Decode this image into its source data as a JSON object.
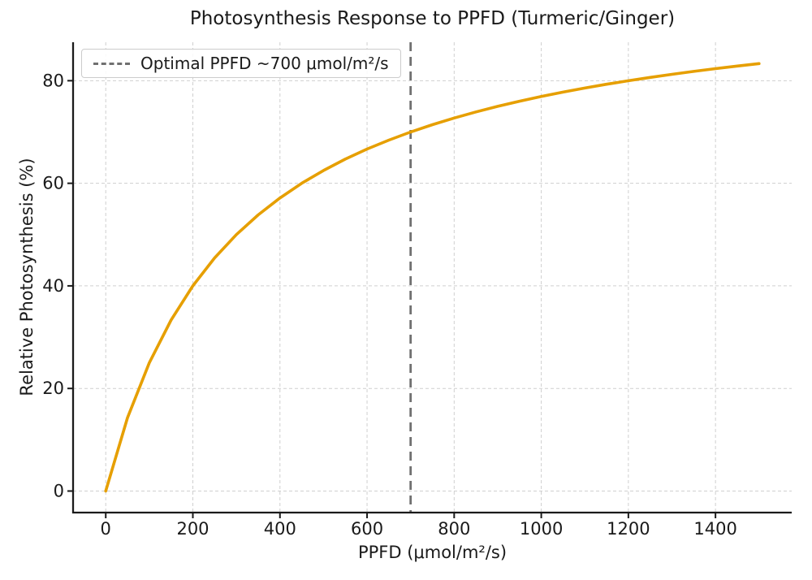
{
  "chart_data": {
    "type": "line",
    "title": "Photosynthesis Response to PPFD (Turmeric/Ginger)",
    "xlabel": "PPFD (μmol/m²/s)",
    "ylabel": "Relative Photosynthesis (%)",
    "x": [
      0,
      50,
      100,
      150,
      200,
      250,
      300,
      350,
      400,
      450,
      500,
      550,
      600,
      650,
      700,
      750,
      800,
      850,
      900,
      950,
      1000,
      1050,
      1100,
      1150,
      1200,
      1250,
      1300,
      1350,
      1400,
      1450,
      1500
    ],
    "series": [
      {
        "name": "relative-photosynthesis",
        "color": "#E69F00",
        "linewidth": 3.6,
        "values": [
          0,
          14.29,
          25.0,
          33.33,
          40.0,
          45.45,
          50.0,
          53.85,
          57.14,
          60.0,
          62.5,
          64.71,
          66.67,
          68.42,
          70.0,
          71.43,
          72.73,
          73.91,
          75.0,
          76.0,
          76.92,
          77.78,
          78.57,
          79.31,
          80.0,
          80.65,
          81.25,
          81.82,
          82.35,
          82.86,
          83.33
        ]
      }
    ],
    "xlim": [
      -75,
      1575
    ],
    "ylim": [
      -4.2,
      87.5
    ],
    "xticks": [
      0,
      200,
      400,
      600,
      800,
      1000,
      1200,
      1400
    ],
    "yticks": [
      0,
      20,
      40,
      60,
      80
    ],
    "grid": {
      "visible": true,
      "style": "dashed",
      "color": "#cfcfcf"
    },
    "vline": {
      "x": 700,
      "color": "#707070",
      "style": "dashed",
      "width": 2.8
    },
    "legend": {
      "position": "upper-left",
      "entries": [
        {
          "label": "Optimal PPFD ~700 μmol/m²/s",
          "swatch": "dashed-line",
          "color": "#707070"
        }
      ]
    },
    "axes": {
      "spine_color": "#1a1a1a",
      "tick_color": "#1a1a1a"
    },
    "background": "#ffffff"
  }
}
